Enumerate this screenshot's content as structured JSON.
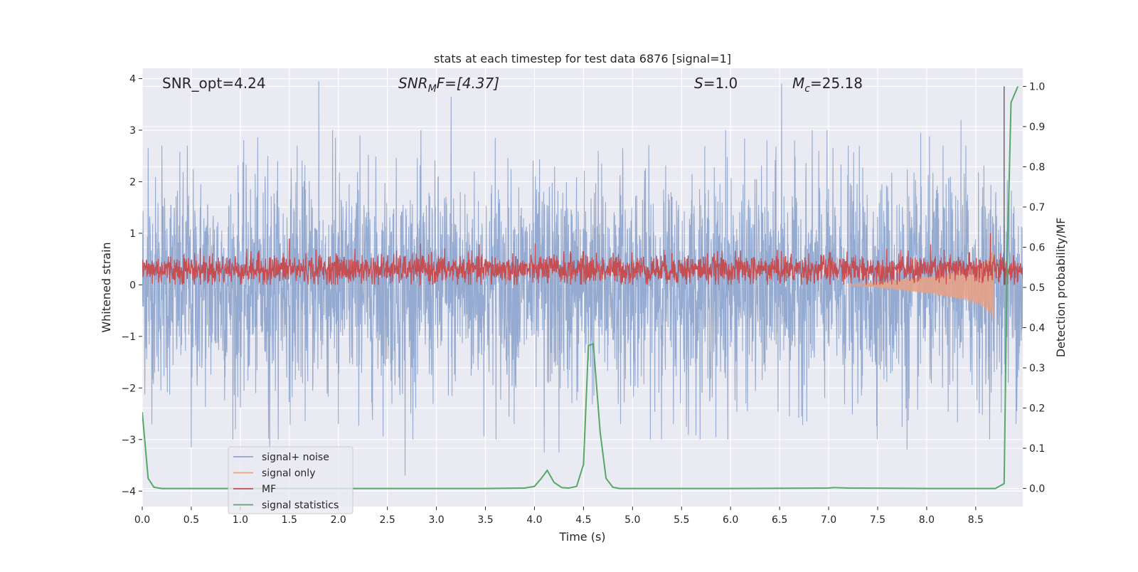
{
  "chart_data": {
    "type": "line",
    "title": "stats at each timestep for test data 6876 [signal=1]",
    "xlabel": "Time (s)",
    "ylabel": "Whitened strain",
    "ylabel_right": "Detection probability/MF",
    "xlim": [
      0.0,
      8.98
    ],
    "ylim": [
      -4.3,
      4.2
    ],
    "ylim_right": [
      -0.045,
      1.045
    ],
    "x_ticks": [
      0.0,
      0.5,
      1.0,
      1.5,
      2.0,
      2.5,
      3.0,
      3.5,
      4.0,
      4.5,
      5.0,
      5.5,
      6.0,
      6.5,
      7.0,
      7.5,
      8.0,
      8.5
    ],
    "x_tick_labels": [
      "0.0",
      "0.5",
      "1.0",
      "1.5",
      "2.0",
      "2.5",
      "3.0",
      "3.5",
      "4.0",
      "4.5",
      "5.0",
      "5.5",
      "6.0",
      "6.5",
      "7.0",
      "7.5",
      "8.0",
      "8.5"
    ],
    "y_ticks": [
      -4,
      -3,
      -2,
      -1,
      0,
      1,
      2,
      3,
      4
    ],
    "y_tick_labels": [
      "−4",
      "−3",
      "−2",
      "−1",
      "0",
      "1",
      "2",
      "3",
      "4"
    ],
    "y_right_ticks": [
      0.0,
      0.1,
      0.2,
      0.3,
      0.4,
      0.5,
      0.6,
      0.7,
      0.8,
      0.9,
      1.0
    ],
    "y_right_tick_labels": [
      "0.0",
      "0.1",
      "0.2",
      "0.3",
      "0.4",
      "0.5",
      "0.6",
      "0.7",
      "0.8",
      "0.9",
      "1.0"
    ],
    "grid": true,
    "legend_position": "lower-left",
    "annotations": {
      "snr_opt": "SNR_opt=4.24",
      "snr_mf_main": "SNR",
      "snr_mf_sub": "M",
      "snr_mf_rest": "F=[4.37]",
      "s_main": "S",
      "s_rest": "=1.0",
      "mc_main": "M",
      "mc_sub": "c",
      "mc_rest": "=25.18"
    },
    "series": [
      {
        "name": "signal+ noise",
        "axis": "left",
        "color": "#8fa6cf",
        "style": "dense-noise",
        "x_range": [
          0.0,
          8.98
        ],
        "band_mean": [
          -0.05,
          0.05
        ],
        "band_typical": [
          -1.6,
          1.7
        ],
        "peaks": [
          [
            0.06,
            2.65
          ],
          [
            0.2,
            2.7
          ],
          [
            0.46,
            2.7
          ],
          [
            0.5,
            -3.15
          ],
          [
            0.95,
            -2.8
          ],
          [
            1.28,
            2.5
          ],
          [
            1.3,
            -3.3
          ],
          [
            1.58,
            2.7
          ],
          [
            1.8,
            3.95
          ],
          [
            1.97,
            2.85
          ],
          [
            2.0,
            -2.7
          ],
          [
            2.22,
            2.9
          ],
          [
            2.68,
            -3.7
          ],
          [
            3.15,
            3.65
          ],
          [
            3.6,
            2.85
          ],
          [
            4.1,
            -3.25
          ],
          [
            4.25,
            -3.25
          ],
          [
            4.65,
            2.6
          ],
          [
            4.9,
            2.65
          ],
          [
            5.55,
            -2.75
          ],
          [
            5.85,
            -2.95
          ],
          [
            5.95,
            3.0
          ],
          [
            6.52,
            3.9
          ],
          [
            6.9,
            2.6
          ],
          [
            7.2,
            2.7
          ],
          [
            7.75,
            -2.75
          ],
          [
            7.8,
            -3.2
          ],
          [
            8.35,
            3.2
          ],
          [
            8.4,
            2.7
          ],
          [
            8.8,
            -2.3
          ]
        ]
      },
      {
        "name": "signal only",
        "axis": "left",
        "color": "#e5a287",
        "style": "chirp",
        "x_range": [
          7.2,
          8.68
        ],
        "amplitude_at_end": 0.75
      },
      {
        "name": "MF",
        "axis": "left",
        "color": "#c44e52",
        "style": "dense-noise",
        "x_range": [
          0.0,
          8.98
        ],
        "band_typical": [
          0.05,
          0.55
        ],
        "peaks": [
          [
            1.5,
            0.9
          ],
          [
            8.65,
            1.0
          ]
        ]
      },
      {
        "name": "signal statistics",
        "axis": "right",
        "color": "#55a868",
        "x": [
          0.0,
          0.06,
          0.12,
          0.2,
          0.3,
          0.5,
          1.0,
          2.0,
          3.0,
          3.5,
          3.9,
          4.0,
          4.07,
          4.13,
          4.2,
          4.28,
          4.35,
          4.43,
          4.5,
          4.55,
          4.6,
          4.67,
          4.73,
          4.8,
          4.87,
          4.95,
          5.5,
          6.0,
          7.0,
          7.05,
          7.2,
          8.0,
          8.7,
          8.79,
          8.82,
          8.86,
          8.93
        ],
        "y": [
          0.19,
          0.025,
          0.003,
          0.0,
          0.0,
          0.0,
          0.0,
          0.0,
          0.0,
          0.0,
          0.001,
          0.005,
          0.025,
          0.045,
          0.015,
          0.002,
          0.001,
          0.005,
          0.06,
          0.355,
          0.36,
          0.14,
          0.025,
          0.003,
          0.0,
          0.0,
          0.0,
          0.0,
          0.001,
          0.002,
          0.001,
          0.0,
          0.0,
          0.012,
          0.55,
          0.96,
          1.0
        ]
      },
      {
        "name": "",
        "axis": "left",
        "color": "#555555",
        "style": "vertical-marker",
        "x": 8.79,
        "y_range": [
          0.0,
          3.85
        ]
      }
    ]
  }
}
